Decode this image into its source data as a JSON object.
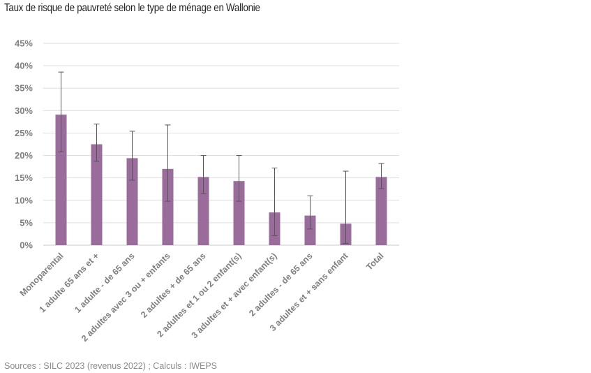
{
  "title": "Taux de risque de pauvreté selon le type de ménage en Wallonie",
  "source": "Sources : SILC 2023 (revenus 2022) ; Calculs : IWEPS",
  "chart_data": {
    "type": "bar",
    "title": "",
    "xlabel": "",
    "ylabel": "",
    "ylim": [
      0,
      45
    ],
    "yticks": [
      0,
      5,
      10,
      15,
      20,
      25,
      30,
      35,
      40,
      45
    ],
    "ytick_labels": [
      "0%",
      "5%",
      "10%",
      "15%",
      "20%",
      "25%",
      "30%",
      "35%",
      "40%",
      "45%"
    ],
    "grid": true,
    "legend": "none",
    "bar_color": "#9a6c9c",
    "categories": [
      "Monoparental",
      "1 adulte 65 ans et +",
      "1 adulte - de 65 ans",
      "2 adultes avec 3 ou + enfants",
      "2 adultes + de 65 ans",
      "2 adultes et 1 ou 2 enfant(s)",
      "3 adultes et + avec enfant(s)",
      "2 adultes - de 65 ans",
      "3 adultes et + sans enfant",
      "Total"
    ],
    "values": [
      29.1,
      22.5,
      19.4,
      17.0,
      15.2,
      14.3,
      7.3,
      6.6,
      4.8,
      15.2
    ],
    "error_low": [
      20.8,
      18.7,
      14.5,
      9.8,
      11.5,
      9.8,
      2.1,
      3.6,
      0.4,
      12.6
    ],
    "error_high": [
      38.6,
      27.0,
      25.4,
      26.8,
      20.0,
      20.0,
      17.2,
      11.0,
      16.5,
      18.2
    ]
  }
}
